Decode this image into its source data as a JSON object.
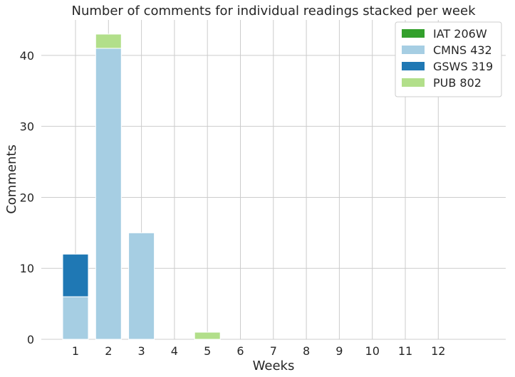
{
  "chart_data": {
    "type": "bar",
    "stacked": true,
    "title": "Number of comments for individual readings stacked per week",
    "xlabel": "Weeks",
    "ylabel": "Comments",
    "categories": [
      "1",
      "2",
      "3",
      "4",
      "5",
      "6",
      "7",
      "8",
      "9",
      "10",
      "11",
      "12"
    ],
    "ylim": [
      0,
      45
    ],
    "yticks": [
      0,
      10,
      20,
      30,
      40
    ],
    "grid": true,
    "legend_position": "top-right",
    "series": [
      {
        "name": "IAT 206W",
        "color": "#33a02c",
        "values": [
          0,
          0,
          0,
          0,
          0,
          0,
          0,
          0,
          0,
          0,
          0,
          0
        ]
      },
      {
        "name": "CMNS 432",
        "color": "#a6cee3",
        "values": [
          6,
          41,
          15,
          0,
          0,
          0,
          0,
          0,
          0,
          0,
          0,
          0
        ]
      },
      {
        "name": "GSWS 319",
        "color": "#1f78b4",
        "values": [
          6,
          0,
          0,
          0,
          0,
          0,
          0,
          0,
          0,
          0,
          0,
          0
        ]
      },
      {
        "name": "PUB 802",
        "color": "#b2df8a",
        "values": [
          0,
          2,
          0,
          0,
          1,
          0,
          0,
          0,
          0,
          0,
          0,
          0
        ]
      }
    ]
  }
}
